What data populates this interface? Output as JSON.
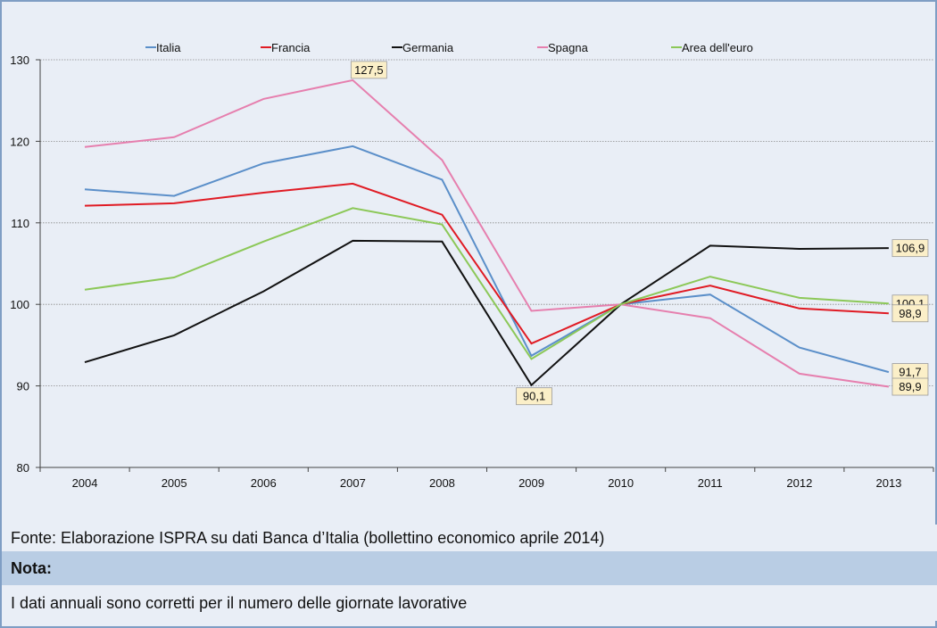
{
  "chart_data": {
    "type": "line",
    "categories": [
      "2004",
      "2005",
      "2006",
      "2007",
      "2008",
      "2009",
      "2010",
      "2011",
      "2012",
      "2013"
    ],
    "ylim": [
      80,
      130
    ],
    "yticks": [
      80,
      90,
      100,
      110,
      120,
      130
    ],
    "legend_position": "top",
    "grid": true,
    "series": [
      {
        "name": "Italia",
        "color": "#5b8fc9",
        "values": [
          114.1,
          113.3,
          117.3,
          119.4,
          115.3,
          93.7,
          100.0,
          101.2,
          94.7,
          91.7
        ]
      },
      {
        "name": "Francia",
        "color": "#e01b24",
        "values": [
          112.1,
          112.4,
          113.7,
          114.8,
          111.0,
          95.2,
          100.0,
          102.3,
          99.5,
          98.9
        ]
      },
      {
        "name": "Germania",
        "color": "#111111",
        "values": [
          92.9,
          96.2,
          101.6,
          107.8,
          107.7,
          90.1,
          100.0,
          107.2,
          106.8,
          106.9
        ]
      },
      {
        "name": "Spagna",
        "color": "#e67fae",
        "values": [
          119.3,
          120.5,
          125.2,
          127.5,
          117.7,
          99.2,
          100.0,
          98.3,
          91.5,
          89.9
        ]
      },
      {
        "name": "Area dell'euro",
        "color": "#8cc858",
        "values": [
          101.8,
          103.3,
          107.7,
          111.8,
          109.8,
          93.3,
          100.0,
          103.4,
          100.8,
          100.1
        ]
      }
    ],
    "annotations": [
      {
        "series": "Spagna",
        "category": "2007",
        "label": "127,5",
        "placement": "above"
      },
      {
        "series": "Germania",
        "category": "2009",
        "label": "90,1",
        "placement": "below"
      },
      {
        "series": "Germania",
        "category": "2013",
        "label": "106,9",
        "placement": "right"
      },
      {
        "series": "Area dell'euro",
        "category": "2013",
        "label": "100,1",
        "placement": "right"
      },
      {
        "series": "Francia",
        "category": "2013",
        "label": "98,9",
        "placement": "right"
      },
      {
        "series": "Italia",
        "category": "2013",
        "label": "91,7",
        "placement": "right"
      },
      {
        "series": "Spagna",
        "category": "2013",
        "label": "89,9",
        "placement": "right"
      }
    ]
  },
  "footer": {
    "source": "Fonte: Elaborazione ISPRA su dati Banca d’Italia (bollettino economico aprile 2014)",
    "note_title": "Nota:",
    "note_text": "I dati annuali sono corretti per il numero delle giornate lavorative"
  }
}
